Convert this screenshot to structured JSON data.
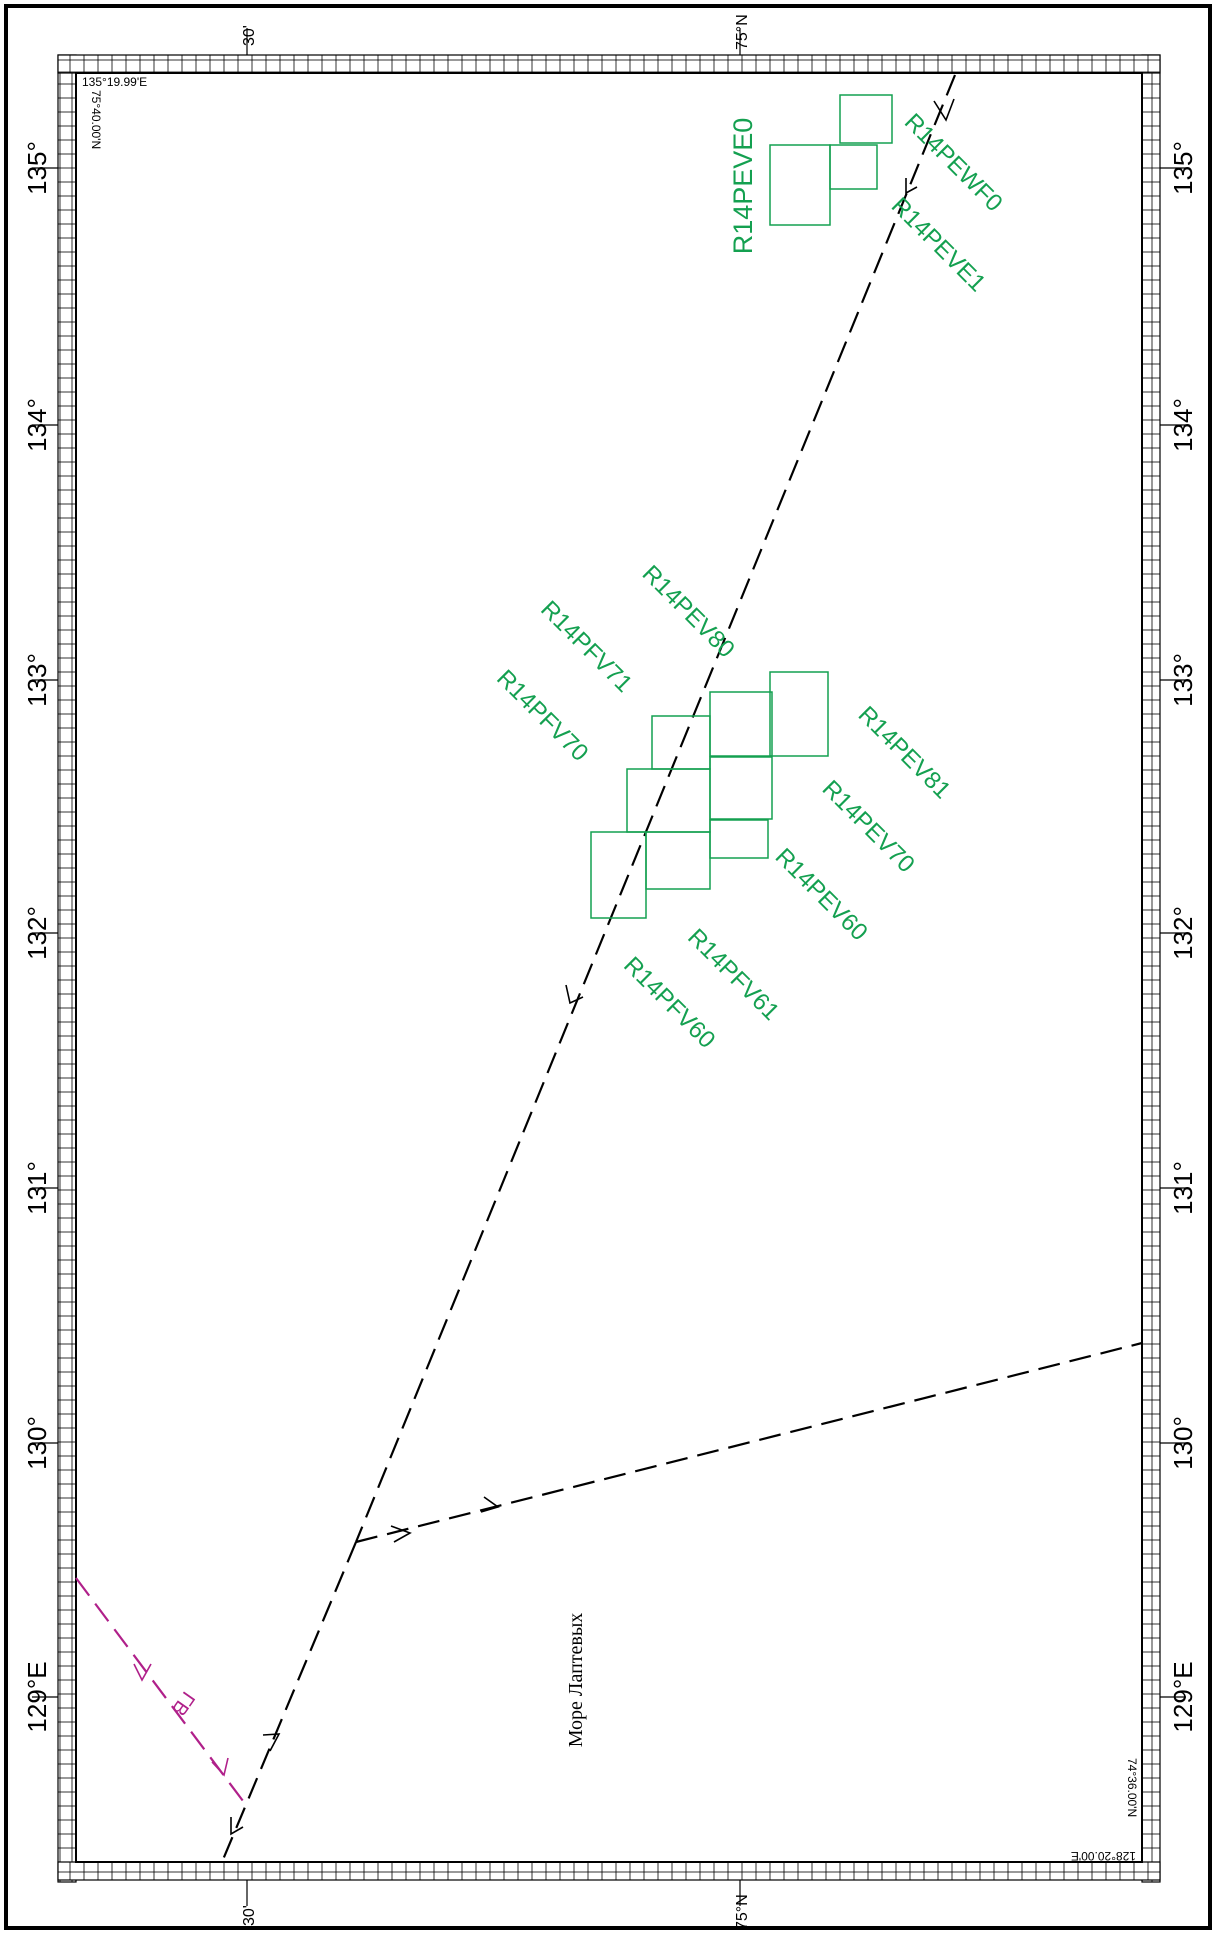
{
  "corner_labels": {
    "top_lon": "135°19.99'E",
    "top_lat": "75°40.00'N",
    "bottom_lon": "128°20.00'E",
    "bottom_lat": "74°36.00'N"
  },
  "lon_labels_left": [
    "135°",
    "134°",
    "133°",
    "132°",
    "131°",
    "130°",
    "129°E"
  ],
  "lon_labels_right": [
    "135°",
    "134°",
    "133°",
    "132°",
    "131°",
    "130°",
    "129°E"
  ],
  "lat_labels_top": [
    "30'",
    "75°N"
  ],
  "lat_labels_bottom": [
    "30'",
    "75°N"
  ],
  "sea_name": "Море Лаптевых",
  "route_label": "ГВ",
  "colors": {
    "cell": "#14a050",
    "route": "#000000",
    "route_magenta": "#b0208a",
    "frame": "#000000"
  },
  "cells": [
    {
      "name": "R14PEVE0"
    },
    {
      "name": "R14PEWF0"
    },
    {
      "name": "R14PEVE1"
    },
    {
      "name": "R14PEV80"
    },
    {
      "name": "R14PFV71"
    },
    {
      "name": "R14PFV70"
    },
    {
      "name": "R14PEV81"
    },
    {
      "name": "R14PEV70"
    },
    {
      "name": "R14PEV60"
    },
    {
      "name": "R14PFV61"
    },
    {
      "name": "R14PFV60"
    }
  ]
}
